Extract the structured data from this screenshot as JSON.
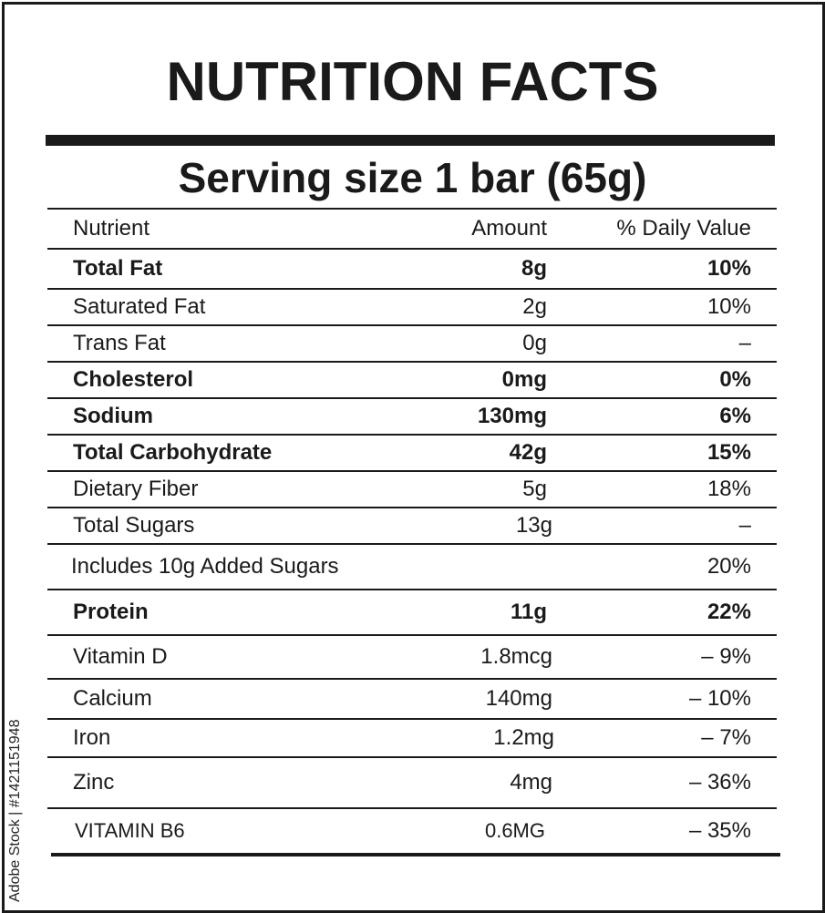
{
  "label": {
    "title": "NUTRITION FACTS",
    "serving": "Serving size 1 bar (65g)",
    "headers": {
      "nutrient": "Nutrient",
      "amount": "Amount",
      "dv": "% Daily Value"
    },
    "rows": [
      {
        "name": "Total Fat",
        "amount": "8g",
        "dv": "10%",
        "bold": true
      },
      {
        "name": "Saturated Fat",
        "amount": "2g",
        "dv": "10%",
        "bold": false
      },
      {
        "name": "Trans Fat",
        "amount": "0g",
        "dv": "–",
        "bold": false
      },
      {
        "name": "Cholesterol",
        "amount": "0mg",
        "dv": "0%",
        "bold": true
      },
      {
        "name": "Sodium",
        "amount": "130mg",
        "dv": "6%",
        "bold": true
      },
      {
        "name": "Total Carbohydrate",
        "amount": "42g",
        "dv": "15%",
        "bold": true
      },
      {
        "name": "Dietary Fiber",
        "amount": "5g",
        "dv": "18%",
        "bold": false
      },
      {
        "name": "Total Sugars",
        "amount": "13g",
        "dv": "–",
        "bold": false
      },
      {
        "name": "Includes 10g Added Sugars",
        "amount": "",
        "dv": "20%",
        "bold": false
      },
      {
        "name": "Protein",
        "amount": "11g",
        "dv": "22%",
        "bold": true
      },
      {
        "name": "Vitamin D",
        "amount": "1.8mcg",
        "dv": "– 9%",
        "bold": false
      },
      {
        "name": "Calcium",
        "amount": "140mg",
        "dv": "– 10%",
        "bold": false
      },
      {
        "name": "Iron",
        "amount": "1.2mg",
        "dv": "– 7%",
        "bold": false
      },
      {
        "name": "Zinc",
        "amount": "4mg",
        "dv": "– 36%",
        "bold": false
      },
      {
        "name": "VITAMIN B6",
        "amount": "0.6MG",
        "dv": "– 35%",
        "bold": false
      }
    ]
  },
  "watermark": "Adobe Stock | #1421151948"
}
